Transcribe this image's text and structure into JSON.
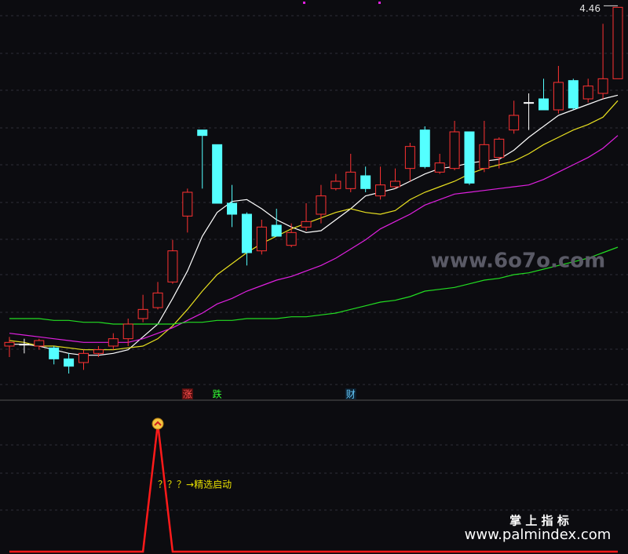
{
  "chart_data": [
    {
      "type": "candlestick",
      "open": [
        2.61,
        2.62,
        2.61,
        2.6,
        2.54,
        2.52,
        2.57,
        2.61,
        2.65,
        2.76,
        2.82,
        2.96,
        3.32,
        3.79,
        3.71,
        3.39,
        3.33,
        3.13,
        3.27,
        3.16,
        3.26,
        3.33,
        3.47,
        3.47,
        3.54,
        3.43,
        3.48,
        3.58,
        3.79,
        3.56,
        3.58,
        3.78,
        3.58,
        3.64,
        3.79,
        3.94,
        3.96,
        3.9,
        4.06,
        3.96,
        3.99,
        4.07
      ],
      "high": [
        2.66,
        2.65,
        2.65,
        2.61,
        2.57,
        2.59,
        2.61,
        2.68,
        2.76,
        2.89,
        2.96,
        3.19,
        3.47,
        3.79,
        3.71,
        3.49,
        3.34,
        3.3,
        3.36,
        3.28,
        3.39,
        3.49,
        3.55,
        3.66,
        3.59,
        3.59,
        3.58,
        3.72,
        3.81,
        3.66,
        3.84,
        3.78,
        3.84,
        3.75,
        3.95,
        3.99,
        4.07,
        4.14,
        4.07,
        4.07,
        4.37,
        4.46
      ],
      "low": [
        2.55,
        2.57,
        2.59,
        2.51,
        2.46,
        2.48,
        2.55,
        2.59,
        2.61,
        2.74,
        2.81,
        2.95,
        3.23,
        3.47,
        3.39,
        3.26,
        3.05,
        3.11,
        3.21,
        3.15,
        3.24,
        3.28,
        3.46,
        3.45,
        3.45,
        3.41,
        3.47,
        3.51,
        3.58,
        3.55,
        3.57,
        3.49,
        3.56,
        3.58,
        3.77,
        3.79,
        3.9,
        3.88,
        3.9,
        3.94,
        3.96,
        4.07
      ],
      "close": [
        2.63,
        2.62,
        2.64,
        2.54,
        2.5,
        2.57,
        2.59,
        2.65,
        2.73,
        2.81,
        2.9,
        3.13,
        3.45,
        3.76,
        3.39,
        3.33,
        3.12,
        3.26,
        3.21,
        3.23,
        3.29,
        3.43,
        3.51,
        3.56,
        3.47,
        3.49,
        3.51,
        3.7,
        3.59,
        3.61,
        3.78,
        3.5,
        3.71,
        3.74,
        3.87,
        3.94,
        3.9,
        4.05,
        3.91,
        4.03,
        4.07,
        4.46
      ],
      "up_color": "#ff3232",
      "down_color": "#54ffff",
      "flat_color": "#ffffff",
      "high_label": "4.46",
      "series": [
        {
          "color": "#ffffff",
          "values": [
            2.62,
            2.62,
            2.61,
            2.59,
            2.57,
            2.56,
            2.56,
            2.57,
            2.59,
            2.66,
            2.73,
            2.87,
            3.02,
            3.21,
            3.34,
            3.4,
            3.41,
            3.36,
            3.3,
            3.26,
            3.23,
            3.24,
            3.3,
            3.36,
            3.43,
            3.45,
            3.47,
            3.51,
            3.55,
            3.58,
            3.59,
            3.61,
            3.62,
            3.63,
            3.68,
            3.75,
            3.81,
            3.87,
            3.9,
            3.93,
            3.96,
            3.98
          ]
        },
        {
          "color": "#e8e020",
          "values": [
            2.64,
            2.63,
            2.61,
            2.61,
            2.6,
            2.59,
            2.59,
            2.59,
            2.6,
            2.61,
            2.65,
            2.72,
            2.81,
            2.91,
            3.0,
            3.06,
            3.12,
            3.17,
            3.21,
            3.25,
            3.28,
            3.31,
            3.34,
            3.36,
            3.34,
            3.33,
            3.35,
            3.41,
            3.45,
            3.48,
            3.51,
            3.55,
            3.58,
            3.6,
            3.62,
            3.66,
            3.71,
            3.75,
            3.79,
            3.82,
            3.86,
            3.95
          ]
        },
        {
          "color": "#e020e0",
          "values": [
            2.68,
            2.67,
            2.66,
            2.65,
            2.64,
            2.63,
            2.63,
            2.63,
            2.63,
            2.65,
            2.68,
            2.71,
            2.75,
            2.79,
            2.84,
            2.87,
            2.91,
            2.94,
            2.97,
            2.99,
            3.02,
            3.05,
            3.09,
            3.14,
            3.19,
            3.25,
            3.29,
            3.33,
            3.38,
            3.41,
            3.44,
            3.45,
            3.46,
            3.47,
            3.48,
            3.49,
            3.52,
            3.56,
            3.6,
            3.64,
            3.69,
            3.76
          ]
        },
        {
          "color": "#22dd22",
          "values": [
            2.76,
            2.76,
            2.76,
            2.75,
            2.75,
            2.74,
            2.74,
            2.73,
            2.73,
            2.73,
            2.73,
            2.73,
            2.74,
            2.74,
            2.75,
            2.75,
            2.76,
            2.76,
            2.76,
            2.77,
            2.77,
            2.78,
            2.79,
            2.81,
            2.83,
            2.85,
            2.86,
            2.88,
            2.91,
            2.92,
            2.93,
            2.95,
            2.97,
            2.98,
            3.0,
            3.01,
            3.03,
            3.05,
            3.07,
            3.09,
            3.12,
            3.15
          ]
        }
      ],
      "signals": [
        {
          "text": "涨",
          "at": 12,
          "color": "#ff5050",
          "bg": "#5a1010"
        },
        {
          "text": "跌",
          "at": 14,
          "color": "#33ff33",
          "bg": "#0c0c10"
        },
        {
          "text": "财",
          "at": 23,
          "color": "#66ccff",
          "bg": "#0c2030"
        }
      ],
      "ylim": [
        2.4,
        4.5
      ]
    },
    {
      "type": "line",
      "series": [
        {
          "color": "#ff1a1a",
          "values": [
            0,
            0,
            0,
            0,
            0,
            0,
            0,
            0,
            0,
            0,
            1,
            0,
            0,
            0,
            0,
            0,
            0,
            0,
            0,
            0,
            0,
            0,
            0,
            0,
            0,
            0,
            0,
            0,
            0,
            0,
            0,
            0,
            0,
            0,
            0,
            0,
            0,
            0,
            0,
            0,
            0,
            0
          ]
        }
      ],
      "ylim": [
        0,
        1
      ],
      "annotation": "？？？→精选启动"
    }
  ],
  "watermarks": [
    "www.6o7o.com",
    "掌 上 指 标",
    "www.palmindex.com"
  ]
}
